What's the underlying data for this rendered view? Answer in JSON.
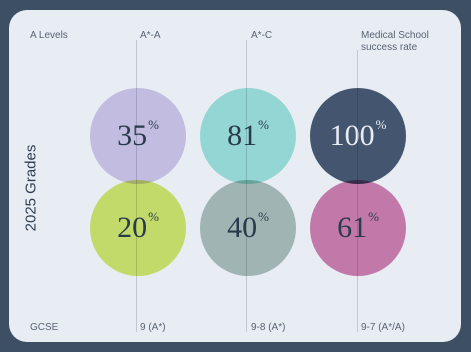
{
  "row_top_label": "A Levels",
  "row_bottom_label": "GCSE",
  "side_title": "2025 Grades",
  "columns": [
    {
      "top_label": "A*-A",
      "bottom_label": "9 (A*)",
      "top_value": "35",
      "bottom_value": "20",
      "top_color": "#d5cdeb",
      "bottom_color": "#d6ec6f"
    },
    {
      "top_label": "A*-C",
      "bottom_label": "9-8 (A*)",
      "top_value": "81",
      "bottom_value": "40",
      "top_color": "#a3e8de",
      "bottom_color": "#b0c4bc"
    },
    {
      "top_label": "Medical School\nsuccess rate",
      "bottom_label": "9-7 (A*/A)",
      "top_value": "100",
      "bottom_value": "61",
      "top_color": "#4a5d74",
      "bottom_color": "#d683b1"
    }
  ],
  "percent_symbol": "%",
  "colors": {
    "background": "#3d4f63",
    "card": "#e8ecf3",
    "dark_text": "#2f3f52",
    "light_text": "#ffffff"
  }
}
